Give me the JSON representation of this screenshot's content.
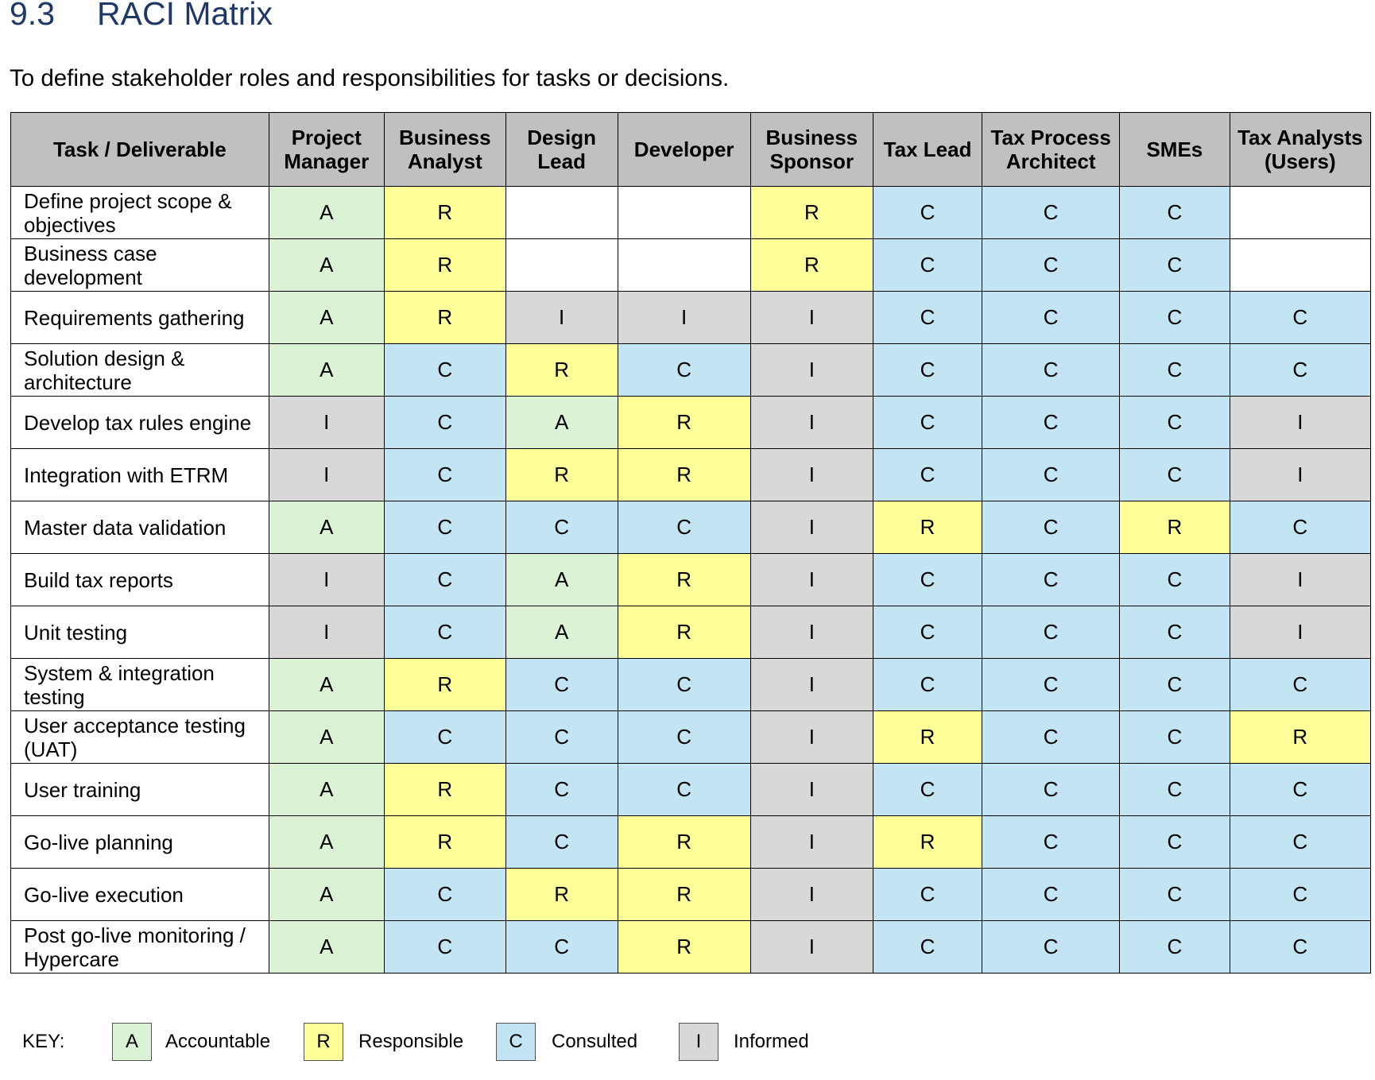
{
  "section": {
    "number": "9.3",
    "title": "RACI Matrix"
  },
  "intro": "To define stakeholder roles and responsibilities for tasks or decisions.",
  "columns": [
    "Task / Deliverable",
    "Project Manager",
    "Business Analyst",
    "Design Lead",
    "Developer",
    "Business Sponsor",
    "Tax Lead",
    "Tax Process Architect",
    "SMEs",
    "Tax Analysts (Users)"
  ],
  "rows": [
    {
      "task": "Define project scope & objectives",
      "roles": [
        "A",
        "R",
        "",
        "",
        "R",
        "C",
        "C",
        "C",
        ""
      ]
    },
    {
      "task": "Business case development",
      "roles": [
        "A",
        "R",
        "",
        "",
        "R",
        "C",
        "C",
        "C",
        ""
      ]
    },
    {
      "task": "Requirements gathering",
      "roles": [
        "A",
        "R",
        "I",
        "I",
        "I",
        "C",
        "C",
        "C",
        "C"
      ]
    },
    {
      "task": "Solution design & architecture",
      "roles": [
        "A",
        "C",
        "R",
        "C",
        "I",
        "C",
        "C",
        "C",
        "C"
      ]
    },
    {
      "task": "Develop tax rules engine",
      "roles": [
        "I",
        "C",
        "A",
        "R",
        "I",
        "C",
        "C",
        "C",
        "I"
      ]
    },
    {
      "task": "Integration with ETRM",
      "roles": [
        "I",
        "C",
        "R",
        "R",
        "I",
        "C",
        "C",
        "C",
        "I"
      ]
    },
    {
      "task": "Master data validation",
      "roles": [
        "A",
        "C",
        "C",
        "C",
        "I",
        "R",
        "C",
        "R",
        "C"
      ]
    },
    {
      "task": "Build tax reports",
      "roles": [
        "I",
        "C",
        "A",
        "R",
        "I",
        "C",
        "C",
        "C",
        "I"
      ]
    },
    {
      "task": "Unit testing",
      "roles": [
        "I",
        "C",
        "A",
        "R",
        "I",
        "C",
        "C",
        "C",
        "I"
      ]
    },
    {
      "task": "System & integration testing",
      "roles": [
        "A",
        "R",
        "C",
        "C",
        "I",
        "C",
        "C",
        "C",
        "C"
      ]
    },
    {
      "task": "User acceptance testing (UAT)",
      "roles": [
        "A",
        "C",
        "C",
        "C",
        "I",
        "R",
        "C",
        "C",
        "R"
      ]
    },
    {
      "task": "User training",
      "roles": [
        "A",
        "R",
        "C",
        "C",
        "I",
        "C",
        "C",
        "C",
        "C"
      ]
    },
    {
      "task": "Go-live planning",
      "roles": [
        "A",
        "R",
        "C",
        "R",
        "I",
        "R",
        "C",
        "C",
        "C"
      ]
    },
    {
      "task": "Go-live execution",
      "roles": [
        "A",
        "C",
        "R",
        "R",
        "I",
        "C",
        "C",
        "C",
        "C"
      ]
    },
    {
      "task": "Post go-live monitoring / Hypercare",
      "roles": [
        "A",
        "C",
        "C",
        "R",
        "I",
        "C",
        "C",
        "C",
        "C"
      ]
    }
  ],
  "key": {
    "label": "KEY:",
    "items": [
      {
        "code": "A",
        "label": "Accountable"
      },
      {
        "code": "R",
        "label": "Responsible"
      },
      {
        "code": "C",
        "label": "Consulted"
      },
      {
        "code": "I",
        "label": "Informed"
      }
    ]
  },
  "colors": {
    "A": "#dcf2d5",
    "R": "#ffff99",
    "C": "#c2e4f3",
    "I": "#d8d8d8",
    "header": "#c0c0c0",
    "heading": "#1f3864"
  }
}
